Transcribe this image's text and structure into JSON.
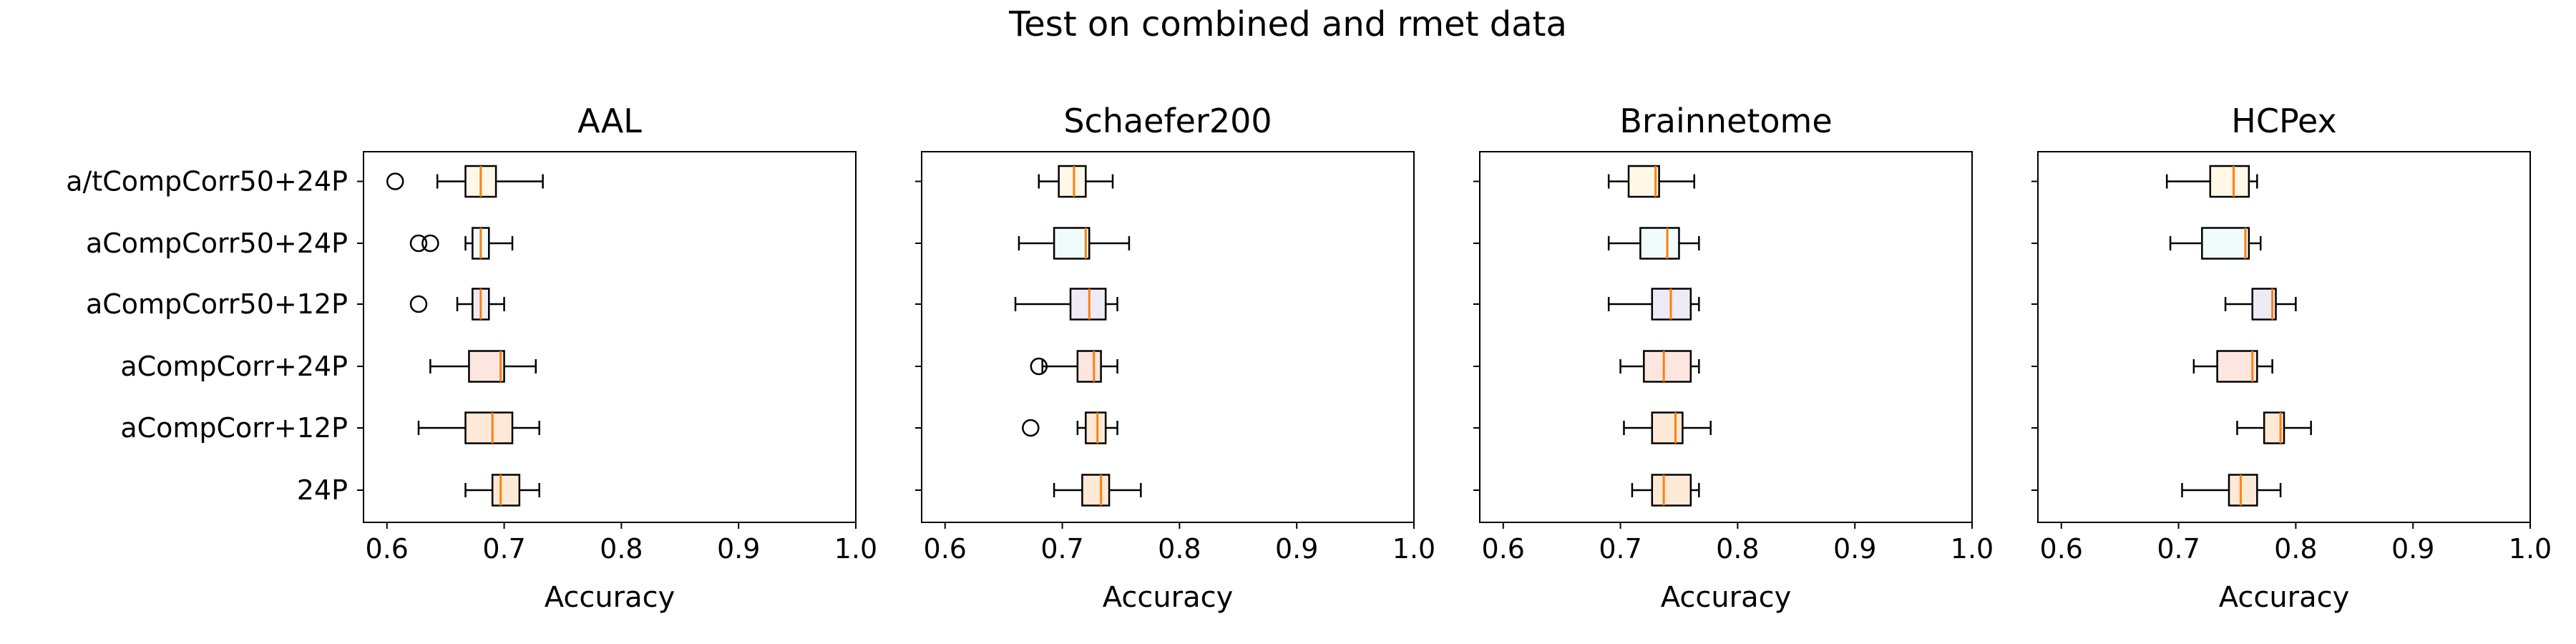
{
  "figure": {
    "title": "Test on combined and rmet data"
  },
  "chart_data": [
    {
      "type": "boxplot",
      "title": "AAL",
      "xlabel": "Accuracy",
      "ylabel": "",
      "xlim": [
        0.58,
        1.0
      ],
      "xticks": [
        "0.6",
        "0.7",
        "0.8",
        "0.9",
        "1.0"
      ],
      "categories": [
        "a/tCompCorr50+24P",
        "aCompCorr50+24P",
        "aCompCorr50+12P",
        "aCompCorr+24P",
        "aCompCorr+12P",
        "24P"
      ],
      "boxes": [
        {
          "whisker_low": 0.643,
          "q1": 0.667,
          "median": 0.68,
          "q3": 0.693,
          "whisker_high": 0.733,
          "outliers": [
            0.607
          ]
        },
        {
          "whisker_low": 0.667,
          "q1": 0.673,
          "median": 0.68,
          "q3": 0.687,
          "whisker_high": 0.707,
          "outliers": [
            0.627,
            0.637
          ]
        },
        {
          "whisker_low": 0.66,
          "q1": 0.673,
          "median": 0.68,
          "q3": 0.687,
          "whisker_high": 0.7,
          "outliers": [
            0.627
          ]
        },
        {
          "whisker_low": 0.637,
          "q1": 0.67,
          "median": 0.697,
          "q3": 0.7,
          "whisker_high": 0.727,
          "outliers": []
        },
        {
          "whisker_low": 0.627,
          "q1": 0.667,
          "median": 0.69,
          "q3": 0.707,
          "whisker_high": 0.73,
          "outliers": []
        },
        {
          "whisker_low": 0.667,
          "q1": 0.69,
          "median": 0.697,
          "q3": 0.713,
          "whisker_high": 0.73,
          "outliers": []
        }
      ]
    },
    {
      "type": "boxplot",
      "title": "Schaefer200",
      "xlabel": "Accuracy",
      "ylabel": "",
      "xlim": [
        0.58,
        1.0
      ],
      "xticks": [
        "0.6",
        "0.7",
        "0.8",
        "0.9",
        "1.0"
      ],
      "categories": [
        "a/tCompCorr50+24P",
        "aCompCorr50+24P",
        "aCompCorr50+12P",
        "aCompCorr+24P",
        "aCompCorr+12P",
        "24P"
      ],
      "boxes": [
        {
          "whisker_low": 0.68,
          "q1": 0.697,
          "median": 0.71,
          "q3": 0.72,
          "whisker_high": 0.743,
          "outliers": []
        },
        {
          "whisker_low": 0.663,
          "q1": 0.693,
          "median": 0.72,
          "q3": 0.723,
          "whisker_high": 0.757,
          "outliers": []
        },
        {
          "whisker_low": 0.66,
          "q1": 0.707,
          "median": 0.723,
          "q3": 0.737,
          "whisker_high": 0.747,
          "outliers": []
        },
        {
          "whisker_low": 0.683,
          "q1": 0.713,
          "median": 0.727,
          "q3": 0.733,
          "whisker_high": 0.747,
          "outliers": [
            0.68
          ]
        },
        {
          "whisker_low": 0.713,
          "q1": 0.72,
          "median": 0.73,
          "q3": 0.737,
          "whisker_high": 0.747,
          "outliers": [
            0.673
          ]
        },
        {
          "whisker_low": 0.693,
          "q1": 0.717,
          "median": 0.733,
          "q3": 0.74,
          "whisker_high": 0.767,
          "outliers": []
        }
      ]
    },
    {
      "type": "boxplot",
      "title": "Brainnetome",
      "xlabel": "Accuracy",
      "ylabel": "",
      "xlim": [
        0.58,
        1.0
      ],
      "xticks": [
        "0.6",
        "0.7",
        "0.8",
        "0.9",
        "1.0"
      ],
      "categories": [
        "a/tCompCorr50+24P",
        "aCompCorr50+24P",
        "aCompCorr50+12P",
        "aCompCorr+24P",
        "aCompCorr+12P",
        "24P"
      ],
      "boxes": [
        {
          "whisker_low": 0.69,
          "q1": 0.707,
          "median": 0.73,
          "q3": 0.733,
          "whisker_high": 0.763,
          "outliers": []
        },
        {
          "whisker_low": 0.69,
          "q1": 0.717,
          "median": 0.74,
          "q3": 0.75,
          "whisker_high": 0.767,
          "outliers": []
        },
        {
          "whisker_low": 0.69,
          "q1": 0.727,
          "median": 0.743,
          "q3": 0.76,
          "whisker_high": 0.767,
          "outliers": []
        },
        {
          "whisker_low": 0.7,
          "q1": 0.72,
          "median": 0.737,
          "q3": 0.76,
          "whisker_high": 0.767,
          "outliers": []
        },
        {
          "whisker_low": 0.703,
          "q1": 0.727,
          "median": 0.747,
          "q3": 0.753,
          "whisker_high": 0.777,
          "outliers": []
        },
        {
          "whisker_low": 0.71,
          "q1": 0.727,
          "median": 0.737,
          "q3": 0.76,
          "whisker_high": 0.767,
          "outliers": []
        }
      ]
    },
    {
      "type": "boxplot",
      "title": "HCPex",
      "xlabel": "Accuracy",
      "ylabel": "",
      "xlim": [
        0.58,
        1.0
      ],
      "xticks": [
        "0.6",
        "0.7",
        "0.8",
        "0.9",
        "1.0"
      ],
      "categories": [
        "a/tCompCorr50+24P",
        "aCompCorr50+24P",
        "aCompCorr50+12P",
        "aCompCorr+24P",
        "aCompCorr+12P",
        "24P"
      ],
      "boxes": [
        {
          "whisker_low": 0.69,
          "q1": 0.727,
          "median": 0.747,
          "q3": 0.76,
          "whisker_high": 0.767,
          "outliers": []
        },
        {
          "whisker_low": 0.693,
          "q1": 0.72,
          "median": 0.757,
          "q3": 0.76,
          "whisker_high": 0.77,
          "outliers": []
        },
        {
          "whisker_low": 0.74,
          "q1": 0.763,
          "median": 0.78,
          "q3": 0.783,
          "whisker_high": 0.8,
          "outliers": []
        },
        {
          "whisker_low": 0.713,
          "q1": 0.733,
          "median": 0.763,
          "q3": 0.767,
          "whisker_high": 0.78,
          "outliers": []
        },
        {
          "whisker_low": 0.75,
          "q1": 0.773,
          "median": 0.787,
          "q3": 0.79,
          "whisker_high": 0.813,
          "outliers": []
        },
        {
          "whisker_low": 0.703,
          "q1": 0.743,
          "median": 0.753,
          "q3": 0.767,
          "whisker_high": 0.787,
          "outliers": []
        }
      ]
    }
  ],
  "style": {
    "box_fill_colors": [
      "#fff8e6",
      "#f0fbfb",
      "#eeeaf6",
      "#fde6df",
      "#fde9d6",
      "#fde9d6"
    ],
    "median_color": "#ff7f0e",
    "line_color": "#000000"
  }
}
